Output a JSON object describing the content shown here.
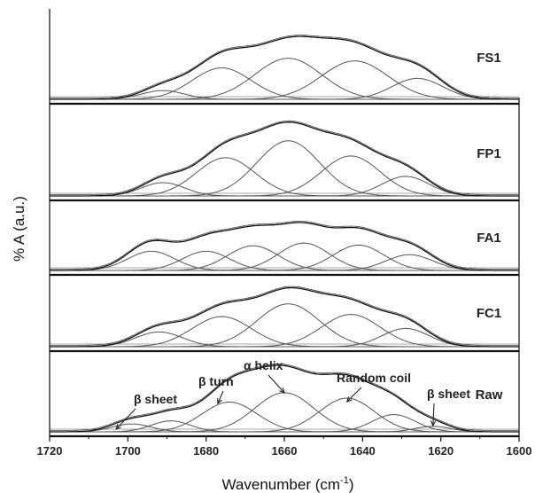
{
  "chart_data": {
    "type": "line",
    "xlabel": "Wavenumber (cm",
    "xlabel_sup": "-1",
    "xlabel_close": ")",
    "ylabel": "% A (a.u.)",
    "xlim": [
      1720,
      1600
    ],
    "x_ticks": [
      "1720",
      "1700",
      "1680",
      "1660",
      "1640",
      "1620",
      "1600"
    ],
    "grid": false,
    "panels": [
      {
        "label": "FS1",
        "envelope_peak": 0.72,
        "bands": [
          {
            "center": 1691,
            "height": 0.1,
            "width": 5.5
          },
          {
            "center": 1676,
            "height": 0.36,
            "width": 7.5
          },
          {
            "center": 1659,
            "height": 0.47,
            "width": 8.5
          },
          {
            "center": 1642,
            "height": 0.44,
            "width": 8.5
          },
          {
            "center": 1626,
            "height": 0.24,
            "width": 6.5
          }
        ]
      },
      {
        "label": "FP1",
        "envelope_peak": 0.83,
        "bands": [
          {
            "center": 1691,
            "height": 0.15,
            "width": 5.5
          },
          {
            "center": 1675,
            "height": 0.43,
            "width": 7.5
          },
          {
            "center": 1659,
            "height": 0.62,
            "width": 8
          },
          {
            "center": 1643,
            "height": 0.45,
            "width": 7.5
          },
          {
            "center": 1629,
            "height": 0.22,
            "width": 6
          }
        ]
      },
      {
        "label": "FA1",
        "envelope_peak": 0.7,
        "bands": [
          {
            "center": 1694,
            "height": 0.28,
            "width": 6
          },
          {
            "center": 1680,
            "height": 0.28,
            "width": 6
          },
          {
            "center": 1668,
            "height": 0.36,
            "width": 6.5
          },
          {
            "center": 1655,
            "height": 0.4,
            "width": 6.5
          },
          {
            "center": 1641,
            "height": 0.37,
            "width": 6.5
          },
          {
            "center": 1628,
            "height": 0.23,
            "width": 6
          }
        ]
      },
      {
        "label": "FC1",
        "envelope_peak": 0.84,
        "bands": [
          {
            "center": 1692,
            "height": 0.21,
            "width": 6
          },
          {
            "center": 1676,
            "height": 0.43,
            "width": 7.5
          },
          {
            "center": 1659,
            "height": 0.61,
            "width": 8
          },
          {
            "center": 1643,
            "height": 0.46,
            "width": 7.5
          },
          {
            "center": 1629,
            "height": 0.26,
            "width": 6
          }
        ]
      },
      {
        "label": "Raw",
        "envelope_peak": 0.85,
        "bands": [
          {
            "center": 1699,
            "height": 0.1,
            "width": 5
          },
          {
            "center": 1689,
            "height": 0.14,
            "width": 5
          },
          {
            "center": 1674,
            "height": 0.38,
            "width": 7
          },
          {
            "center": 1660,
            "height": 0.5,
            "width": 7.5
          },
          {
            "center": 1644,
            "height": 0.43,
            "width": 7
          },
          {
            "center": 1632,
            "height": 0.22,
            "width": 5.5
          },
          {
            "center": 1622,
            "height": 0.07,
            "width": 4.5
          }
        ]
      }
    ],
    "annotations": [
      {
        "text": "β sheet",
        "target_x": 1701
      },
      {
        "text": "β turn",
        "target_x": 1677
      },
      {
        "text": "α  helix",
        "target_x": 1660
      },
      {
        "text": "Random coil",
        "target_x": 1644
      },
      {
        "text": "β sheet",
        "target_x": 1622
      }
    ]
  }
}
